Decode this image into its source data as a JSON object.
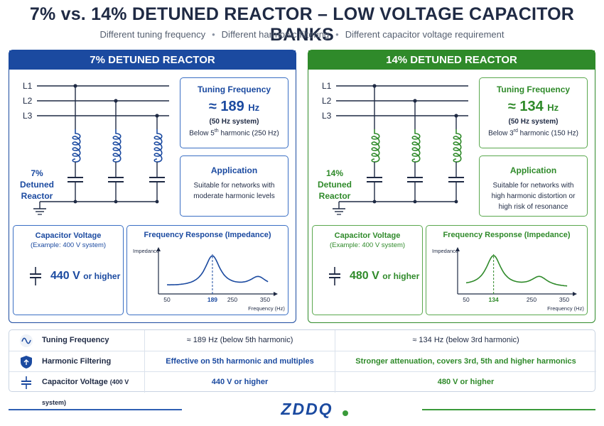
{
  "title": "7% vs. 14% DETUNED REACTOR – LOW VOLTAGE CAPACITOR BANKS",
  "subtitle": {
    "items": [
      "Different tuning frequency",
      "Different harmonic filtering",
      "Different capacitor voltage requirement"
    ],
    "separator": "•"
  },
  "panels": [
    {
      "header": "7% DETUNED REACTOR",
      "accent": "#1b4aa0",
      "lines": [
        "L1",
        "L2",
        "L3"
      ],
      "reactor_label": [
        "7%",
        "Detuned",
        "Reactor"
      ],
      "tuning": {
        "title": "Tuning Frequency",
        "approx": "≈",
        "value": "189",
        "unit": "Hz",
        "system": "(50 Hz system)",
        "note_prefix": "Below 5",
        "note_sup": "th",
        "note_suffix": " harmonic (250 Hz)"
      },
      "application": {
        "title": "Application",
        "text": "Suitable for networks with moderate harmonic levels"
      },
      "capacitor": {
        "title": "Capacitor Voltage",
        "example": "(Example: 400 V system)",
        "value": "440 V",
        "suffix": "or higher"
      },
      "freq_chart": {
        "title": "Frequency Response (Impedance)",
        "ylabel": "Impedance",
        "xlabel": "Frequency (Hz)",
        "ticks": [
          "50",
          "189",
          "250",
          "350"
        ],
        "peak_label": "189"
      }
    },
    {
      "header": "14% DETUNED REACTOR",
      "accent": "#2f8a2a",
      "lines": [
        "L1",
        "L2",
        "L3"
      ],
      "reactor_label": [
        "14%",
        "Detuned",
        "Reactor"
      ],
      "tuning": {
        "title": "Tuning Frequency",
        "approx": "≈",
        "value": "134",
        "unit": "Hz",
        "system": "(50 Hz system)",
        "note_prefix": "Below 3",
        "note_sup": "rd",
        "note_suffix": " harmonic (150 Hz)"
      },
      "application": {
        "title": "Application",
        "text": "Suitable for networks with high harmonic distortion or high risk of resonance"
      },
      "capacitor": {
        "title": "Capacitor Voltage",
        "example": "(Example: 400 V system)",
        "value": "480 V",
        "suffix": "or higher"
      },
      "freq_chart": {
        "title": "Frequency Response (Impedance)",
        "ylabel": "Impedance",
        "xlabel": "Frequency (Hz)",
        "ticks": [
          "50",
          "134",
          "250",
          "350"
        ],
        "peak_label": "134"
      }
    }
  ],
  "table": {
    "rows": [
      {
        "icon": "wave-icon",
        "label": "Tuning Frequency",
        "label_small": "",
        "left": "≈ 189 Hz (below 5th harmonic)",
        "right": "≈ 134 Hz (below 3rd harmonic)"
      },
      {
        "icon": "shield-icon",
        "label": "Harmonic Filtering",
        "label_small": "",
        "left": "Effective on 5th harmonic and multiples",
        "right": "Stronger attenuation, covers 3rd, 5th and higher harmonics"
      },
      {
        "icon": "capacitor-icon",
        "label": "Capacitor Voltage",
        "label_small": "(400 V system)",
        "left": "440 V or higher",
        "right": "480 V or higher"
      }
    ]
  },
  "logo_text": "ZDDQ"
}
